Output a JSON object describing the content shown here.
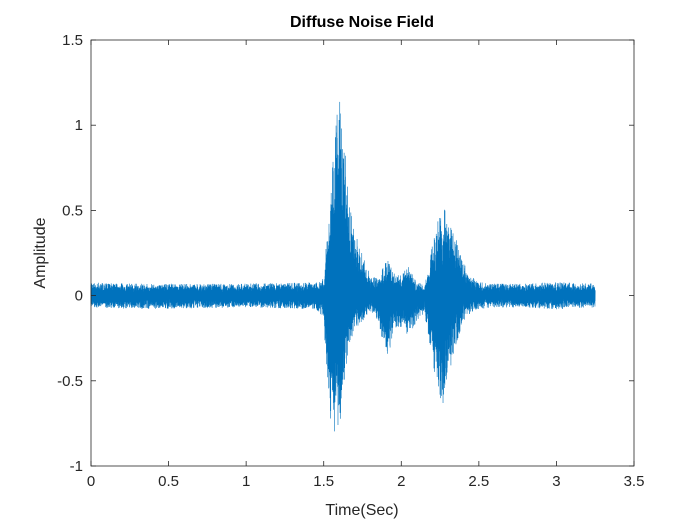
{
  "chart_data": {
    "type": "line",
    "title": "Diffuse Noise Field",
    "xlabel": "Time(Sec)",
    "ylabel": "Amplitude",
    "xlim": [
      0,
      3.5
    ],
    "ylim": [
      -1,
      1.5
    ],
    "xticks": [
      0,
      0.5,
      1,
      1.5,
      2,
      2.5,
      3,
      3.5
    ],
    "xtick_labels": [
      "0",
      "0.5",
      "1",
      "1.5",
      "2",
      "2.5",
      "3",
      "3.5"
    ],
    "yticks": [
      -1,
      -0.5,
      0,
      0.5,
      1,
      1.5
    ],
    "ytick_labels": [
      "-1",
      "-0.5",
      "0",
      "0.5",
      "1",
      "1.5"
    ],
    "grid": false,
    "line_color": "#0072BD",
    "series": [
      {
        "x_range": [
          0,
          3.25
        ],
        "envelope": {
          "x": [
            0,
            0.3,
            1.0,
            1.45,
            1.5,
            1.52,
            1.55,
            1.58,
            1.6,
            1.62,
            1.64,
            1.66,
            1.7,
            1.75,
            1.8,
            1.85,
            1.9,
            1.92,
            1.95,
            2.0,
            2.05,
            2.1,
            2.15,
            2.2,
            2.25,
            2.28,
            2.3,
            2.35,
            2.4,
            2.45,
            2.5,
            2.6,
            2.8,
            3.0,
            3.25
          ],
          "upper": [
            0.08,
            0.07,
            0.07,
            0.08,
            0.1,
            0.4,
            0.7,
            1.15,
            1.2,
            1.1,
            0.85,
            0.55,
            0.4,
            0.25,
            0.12,
            0.1,
            0.2,
            0.22,
            0.15,
            0.12,
            0.18,
            0.08,
            0.06,
            0.3,
            0.5,
            0.55,
            0.45,
            0.35,
            0.2,
            0.12,
            0.08,
            0.07,
            0.07,
            0.08,
            0.07
          ],
          "lower": [
            -0.07,
            -0.08,
            -0.07,
            -0.08,
            -0.15,
            -0.5,
            -0.8,
            -0.88,
            -0.85,
            -0.65,
            -0.45,
            -0.3,
            -0.2,
            -0.15,
            -0.1,
            -0.15,
            -0.35,
            -0.35,
            -0.2,
            -0.2,
            -0.25,
            -0.15,
            -0.1,
            -0.4,
            -0.6,
            -0.65,
            -0.5,
            -0.3,
            -0.15,
            -0.1,
            -0.08,
            -0.07,
            -0.07,
            -0.08,
            -0.07
          ]
        }
      }
    ]
  }
}
